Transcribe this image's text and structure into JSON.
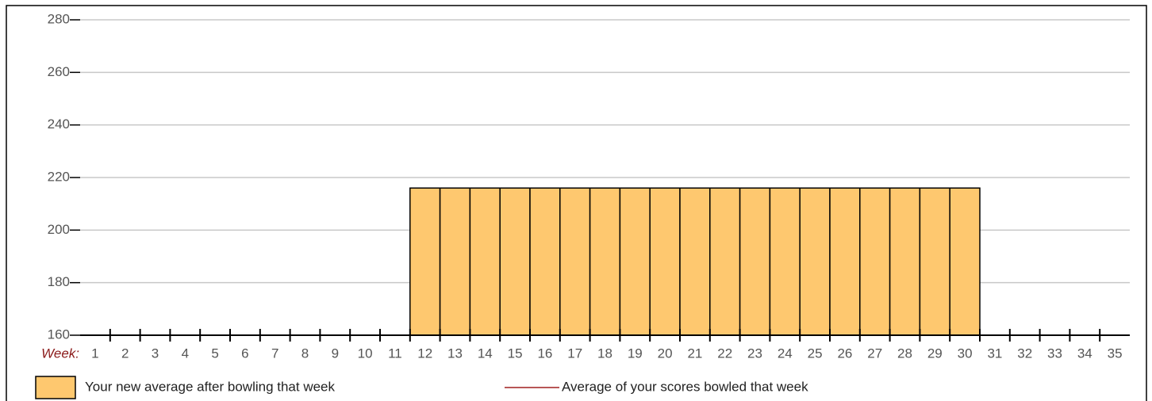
{
  "chart_data": {
    "type": "bar",
    "x_label": "Week:",
    "categories": [
      "1",
      "2",
      "3",
      "4",
      "5",
      "6",
      "7",
      "8",
      "9",
      "10",
      "11",
      "12",
      "13",
      "14",
      "15",
      "16",
      "17",
      "18",
      "19",
      "20",
      "21",
      "22",
      "23",
      "24",
      "25",
      "26",
      "27",
      "28",
      "29",
      "30",
      "31",
      "32",
      "33",
      "34",
      "35"
    ],
    "series": [
      {
        "name": "Your new average after bowling that week",
        "type": "bar",
        "color": "#fec86f",
        "values": [
          null,
          null,
          null,
          null,
          null,
          null,
          null,
          null,
          null,
          null,
          null,
          216,
          216,
          216,
          216,
          216,
          216,
          216,
          216,
          216,
          216,
          216,
          216,
          216,
          216,
          216,
          216,
          216,
          216,
          216,
          null,
          null,
          null,
          null,
          null
        ]
      },
      {
        "name": "Average of your scores bowled that week",
        "type": "line",
        "color": "#a01e1e",
        "values": [
          null,
          null,
          null,
          null,
          null,
          null,
          null,
          null,
          null,
          null,
          null,
          null,
          null,
          null,
          null,
          null,
          null,
          null,
          null,
          null,
          null,
          null,
          null,
          null,
          null,
          null,
          null,
          null,
          null,
          null,
          null,
          null,
          null,
          null,
          null
        ]
      }
    ],
    "ylim": [
      160,
      280
    ],
    "yticks": [
      160,
      180,
      200,
      220,
      240,
      260,
      280
    ],
    "grid": true
  }
}
